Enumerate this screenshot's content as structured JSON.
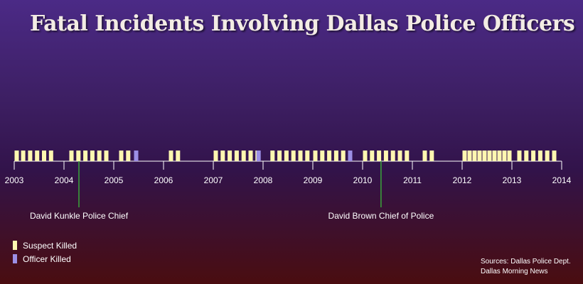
{
  "title": "Fatal Incidents Involving Dallas Police Officers",
  "colors": {
    "suspect": "#fff7b0",
    "officer": "#9c8fe6",
    "axis": "#ffffff",
    "annotation_line": "#3aa63a"
  },
  "legend": {
    "suspect": "Suspect Killed",
    "officer": "Officer Killed"
  },
  "source": {
    "line1": "Sources: Dallas Police Dept.",
    "line2": "Dallas Morning News"
  },
  "chart_data": {
    "type": "timeline",
    "x_axis": {
      "min": 2003,
      "max": 2014,
      "ticks": [
        2003,
        2004,
        2005,
        2006,
        2007,
        2008,
        2009,
        2010,
        2011,
        2012,
        2013,
        2014
      ]
    },
    "series": [
      {
        "name": "Suspect Killed",
        "dates": [
          2003.05,
          2003.18,
          2003.32,
          2003.46,
          2003.6,
          2003.74,
          2004.15,
          2004.29,
          2004.43,
          2004.57,
          2004.71,
          2004.85,
          2005.15,
          2005.29,
          2006.15,
          2006.29,
          2007.05,
          2007.19,
          2007.33,
          2007.47,
          2007.61,
          2007.75,
          2007.89,
          2008.19,
          2008.33,
          2008.47,
          2008.61,
          2008.75,
          2008.89,
          2009.05,
          2009.19,
          2009.33,
          2009.47,
          2009.61,
          2010.05,
          2010.19,
          2010.33,
          2010.47,
          2010.61,
          2010.75,
          2010.89,
          2011.25,
          2011.39,
          2012.05,
          2012.15,
          2012.25,
          2012.35,
          2012.45,
          2012.55,
          2012.65,
          2012.75,
          2012.85,
          2012.95,
          2013.15,
          2013.29,
          2013.43,
          2013.57,
          2013.71,
          2013.85
        ]
      },
      {
        "name": "Officer Killed",
        "dates": [
          2005.45,
          2007.91,
          2009.75
        ]
      }
    ],
    "annotations": [
      {
        "label": "David Kunkle Police Chief",
        "date": 2004.3
      },
      {
        "label": "David Brown Chief of Police",
        "date": 2010.37
      }
    ]
  }
}
